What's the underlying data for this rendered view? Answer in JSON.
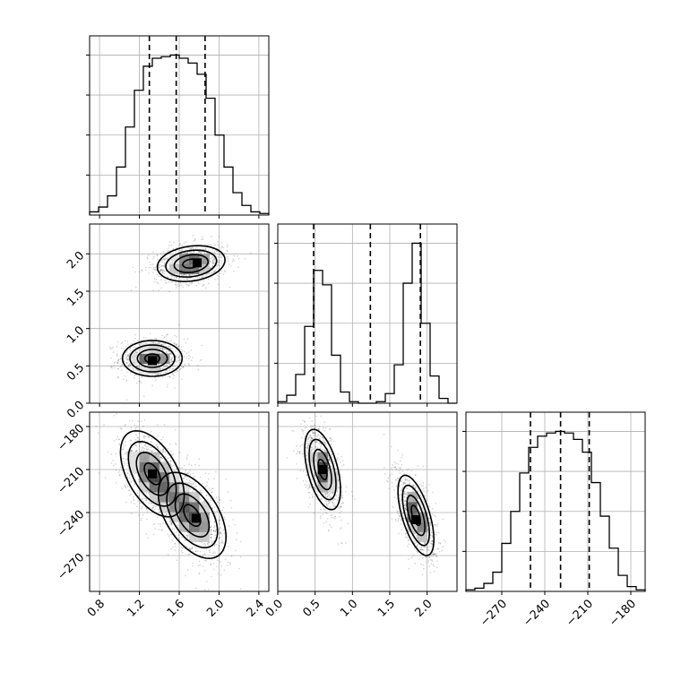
{
  "chart_data": {
    "type": "corner",
    "grid": true,
    "parameters": [
      {
        "index": 0,
        "range": [
          0.7,
          2.5
        ],
        "ticks": [
          0.8,
          1.2,
          1.6,
          2.0,
          2.4
        ],
        "tick_labels": [
          "0.8",
          "1.2",
          "1.6",
          "2.0",
          "2.4"
        ]
      },
      {
        "index": 1,
        "range": [
          0.0,
          2.4
        ],
        "ticks": [
          0.0,
          0.5,
          1.0,
          1.5,
          2.0
        ],
        "tick_labels": [
          "0.0",
          "0.5",
          "1.0",
          "1.5",
          "2.0"
        ]
      },
      {
        "index": 2,
        "range": [
          -295,
          -170
        ],
        "ticks": [
          -270,
          -240,
          -210,
          -180
        ],
        "tick_labels": [
          "−270",
          "−240",
          "−210",
          "−180"
        ]
      }
    ],
    "marginals": [
      {
        "param": 0,
        "bin_edges": [
          0.7,
          0.79,
          0.88,
          0.97,
          1.06,
          1.15,
          1.24,
          1.33,
          1.42,
          1.51,
          1.6,
          1.69,
          1.78,
          1.87,
          1.96,
          2.05,
          2.14,
          2.23,
          2.32,
          2.41,
          2.5
        ],
        "counts": [
          0.02,
          0.05,
          0.12,
          0.3,
          0.55,
          0.78,
          0.93,
          0.98,
          0.99,
          1.0,
          0.98,
          0.95,
          0.88,
          0.73,
          0.5,
          0.3,
          0.14,
          0.06,
          0.02,
          0.01
        ],
        "quantiles": [
          1.3,
          1.57,
          1.86
        ]
      },
      {
        "param": 1,
        "bin_edges": [
          0.0,
          0.12,
          0.24,
          0.36,
          0.48,
          0.6,
          0.72,
          0.84,
          0.96,
          1.08,
          1.2,
          1.32,
          1.44,
          1.56,
          1.68,
          1.8,
          1.92,
          2.04,
          2.16,
          2.28,
          2.4
        ],
        "counts": [
          0.01,
          0.05,
          0.18,
          0.48,
          0.83,
          0.74,
          0.3,
          0.07,
          0.01,
          0.0,
          0.0,
          0.01,
          0.06,
          0.24,
          0.75,
          1.0,
          0.5,
          0.17,
          0.03,
          0.0
        ],
        "quantiles": [
          0.48,
          1.24,
          1.91
        ]
      },
      {
        "param": 2,
        "bin_edges": [
          -295,
          -288.75,
          -282.5,
          -276.25,
          -270,
          -263.75,
          -257.5,
          -251.25,
          -245,
          -238.75,
          -232.5,
          -226.25,
          -220,
          -213.75,
          -207.5,
          -201.25,
          -195,
          -188.75,
          -182.5,
          -176.25,
          -170
        ],
        "counts": [
          0.01,
          0.02,
          0.05,
          0.12,
          0.3,
          0.5,
          0.74,
          0.9,
          0.97,
          0.99,
          1.0,
          0.99,
          0.95,
          0.87,
          0.68,
          0.47,
          0.27,
          0.1,
          0.03,
          0.01
        ],
        "quantiles": [
          -250,
          -229,
          -209
        ]
      }
    ],
    "joint_panels": [
      {
        "x_param": 0,
        "y_param": 1,
        "modes": [
          {
            "center": [
              1.33,
              0.6
            ],
            "sigma": [
              0.15,
              0.12
            ],
            "rho": 0.0,
            "weight": 0.5,
            "peak": [
              1.33,
              0.57
            ]
          },
          {
            "center": [
              1.72,
              1.87
            ],
            "sigma": [
              0.17,
              0.12
            ],
            "rho": 0.2,
            "weight": 0.5,
            "peak": [
              1.78,
              1.88
            ]
          }
        ]
      },
      {
        "x_param": 0,
        "y_param": 2,
        "modes": [
          {
            "center": [
              1.33,
              -213
            ],
            "sigma": [
              0.16,
              15
            ],
            "rho": -0.5,
            "weight": 0.5,
            "peak": [
              1.33,
              -213
            ]
          },
          {
            "center": [
              1.73,
              -242
            ],
            "sigma": [
              0.17,
              15
            ],
            "rho": -0.5,
            "weight": 0.5,
            "peak": [
              1.77,
              -244
            ]
          }
        ]
      },
      {
        "x_param": 1,
        "y_param": 2,
        "modes": [
          {
            "center": [
              0.6,
              -210
            ],
            "sigma": [
              0.12,
              14
            ],
            "rho": -0.5,
            "weight": 0.5,
            "peak": [
              0.6,
              -210
            ]
          },
          {
            "center": [
              1.85,
              -242
            ],
            "sigma": [
              0.12,
              14
            ],
            "rho": -0.6,
            "weight": 0.5,
            "peak": [
              1.85,
              -245
            ]
          }
        ]
      }
    ],
    "contour_levels_sigma": [
      0.5,
      1.0,
      1.5,
      2.0
    ]
  }
}
